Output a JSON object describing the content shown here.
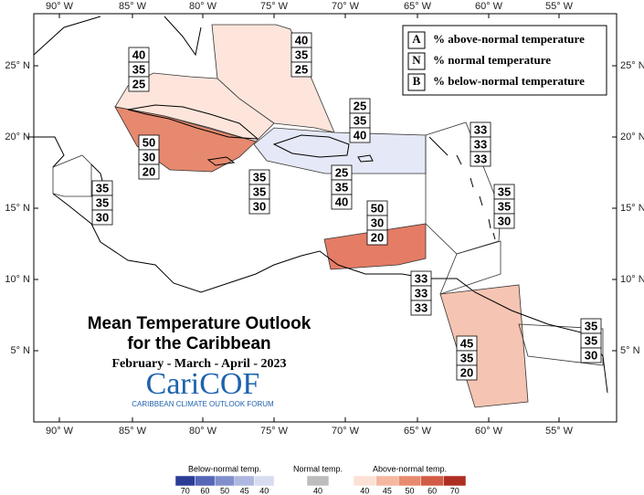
{
  "map": {
    "longitude_labels": [
      "90° W",
      "85° W",
      "80° W",
      "75° W",
      "70° W",
      "65° W",
      "60° W",
      "55° W"
    ],
    "latitude_labels": [
      "25° N",
      "20° N",
      "15° N",
      "10° N",
      "5° N"
    ],
    "key": [
      {
        "letter": "A",
        "text": "% above-normal temperature"
      },
      {
        "letter": "N",
        "text": "% normal temperature"
      },
      {
        "letter": "B",
        "text": "% below-normal temperature"
      }
    ],
    "title": "Mean Temperature Outlook",
    "subtitle": "for the Caribbean",
    "period": "February - March - April - 2023",
    "logo": "CariCOF",
    "logo_caption": "CARIBBEAN CLIMATE OUTLOOK FORUM",
    "regions": [
      {
        "above": 40,
        "normal": 35,
        "below": 25
      },
      {
        "above": 40,
        "normal": 35,
        "below": 25
      },
      {
        "above": 50,
        "normal": 30,
        "below": 20
      },
      {
        "above": 25,
        "normal": 35,
        "below": 40
      },
      {
        "above": 33,
        "normal": 33,
        "below": 33
      },
      {
        "above": 35,
        "normal": 35,
        "below": 30
      },
      {
        "above": 35,
        "normal": 35,
        "below": 30
      },
      {
        "above": 25,
        "normal": 35,
        "below": 40
      },
      {
        "above": 35,
        "normal": 35,
        "below": 30
      },
      {
        "above": 50,
        "normal": 30,
        "below": 20
      },
      {
        "above": 33,
        "normal": 33,
        "below": 33
      },
      {
        "above": 45,
        "normal": 35,
        "below": 20
      },
      {
        "above": 35,
        "normal": 35,
        "below": 30
      }
    ],
    "legend": [
      {
        "title": "Below-normal temp.",
        "ticks": [
          70,
          60,
          50,
          45,
          40
        ],
        "colors": [
          "#2b3c97",
          "#5567b6",
          "#8190cc",
          "#aeb7df",
          "#d7dcf0"
        ]
      },
      {
        "title": "Normal temp.",
        "ticks": [
          40
        ],
        "colors": [
          "#bdbdbd"
        ]
      },
      {
        "title": "Above-normal temp.",
        "ticks": [
          40,
          45,
          50,
          60,
          70
        ],
        "colors": [
          "#fbe1d6",
          "#f4b7a0",
          "#e88a6f",
          "#d25b45",
          "#ae2f22"
        ]
      }
    ]
  }
}
